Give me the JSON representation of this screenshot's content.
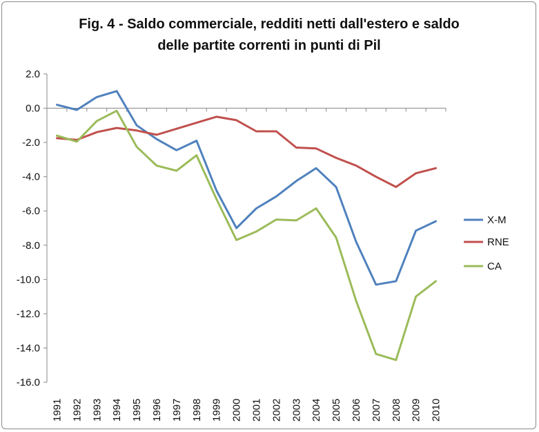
{
  "chart_data": {
    "type": "line",
    "title": "Fig. 4 - Saldo commerciale, redditi netti dall'estero e saldo delle partite correnti in punti di Pil",
    "title_lines": [
      "Fig. 4 - Saldo commerciale, redditi netti dall'estero e saldo",
      "delle partite correnti in punti di Pil"
    ],
    "xlabel": "",
    "ylabel": "",
    "x": [
      "1991",
      "1992",
      "1993",
      "1994",
      "1995",
      "1996",
      "1997",
      "1998",
      "1999",
      "2000",
      "2001",
      "2002",
      "2003",
      "2004",
      "2005",
      "2006",
      "2007",
      "2008",
      "2009",
      "2010"
    ],
    "yticks": [
      "2.0",
      "0.0",
      "-2.0",
      "-4.0",
      "-6.0",
      "-8.0",
      "-10.0",
      "-12.0",
      "-14.0",
      "-16.0"
    ],
    "ylim": [
      -16,
      2
    ],
    "grid": false,
    "legend_position": "right",
    "series": [
      {
        "name": "X-M",
        "color": "#4f81bd",
        "values": [
          0.2,
          -0.1,
          0.65,
          1.0,
          -1.0,
          -1.8,
          -2.45,
          -1.9,
          -4.8,
          -7.0,
          -5.85,
          -5.15,
          -4.25,
          -3.5,
          -4.6,
          -7.8,
          -10.3,
          -10.1,
          -7.15,
          -6.6
        ]
      },
      {
        "name": "RNE",
        "color": "#c0504d",
        "values": [
          -1.75,
          -1.85,
          -1.4,
          -1.15,
          -1.3,
          -1.55,
          -1.2,
          -0.85,
          -0.5,
          -0.7,
          -1.35,
          -1.35,
          -2.3,
          -2.35,
          -2.9,
          -3.35,
          -4.0,
          -4.6,
          -3.8,
          -3.5
        ]
      },
      {
        "name": "CA",
        "color": "#9bbb59",
        "values": [
          -1.6,
          -1.95,
          -0.75,
          -0.15,
          -2.25,
          -3.35,
          -3.65,
          -2.75,
          -5.3,
          -7.7,
          -7.2,
          -6.5,
          -6.55,
          -5.85,
          -7.55,
          -11.25,
          -14.35,
          -14.7,
          -11.0,
          -10.1
        ]
      }
    ]
  }
}
